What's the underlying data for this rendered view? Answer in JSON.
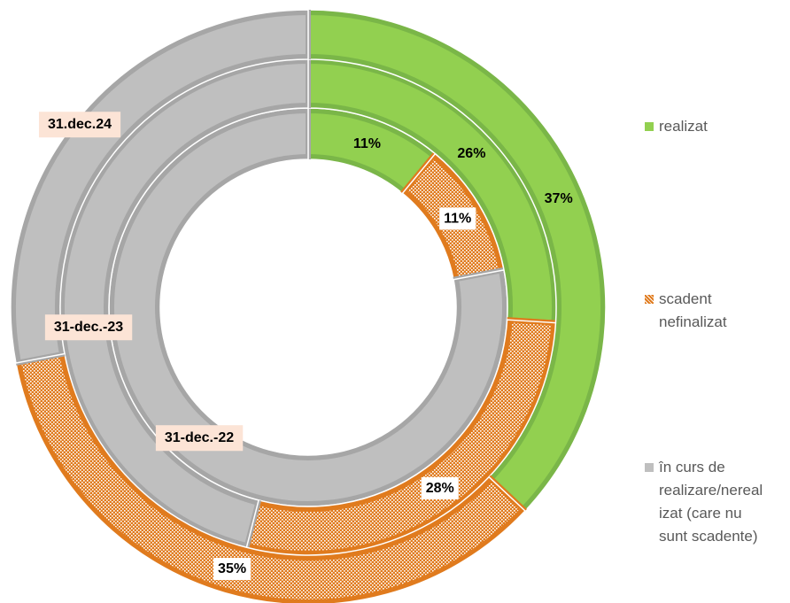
{
  "chart_data": {
    "type": "multi-donut",
    "categories": [
      "31-dec.-22",
      "31-dec.-23",
      "31.dec.24"
    ],
    "series": [
      {
        "name": "realizat",
        "color": "#92d050",
        "values": [
          11,
          26,
          37
        ]
      },
      {
        "name": "scadent nefinalizat",
        "color": "#e07b1e",
        "pattern": "hatch",
        "values": [
          11,
          28,
          35
        ]
      },
      {
        "name": "în curs de realizare/nerealizat (care nu sunt scadente)",
        "color": "#bfbfbf",
        "show_labels": false,
        "values": [
          78,
          46,
          28
        ]
      }
    ],
    "legend": "right"
  }
}
